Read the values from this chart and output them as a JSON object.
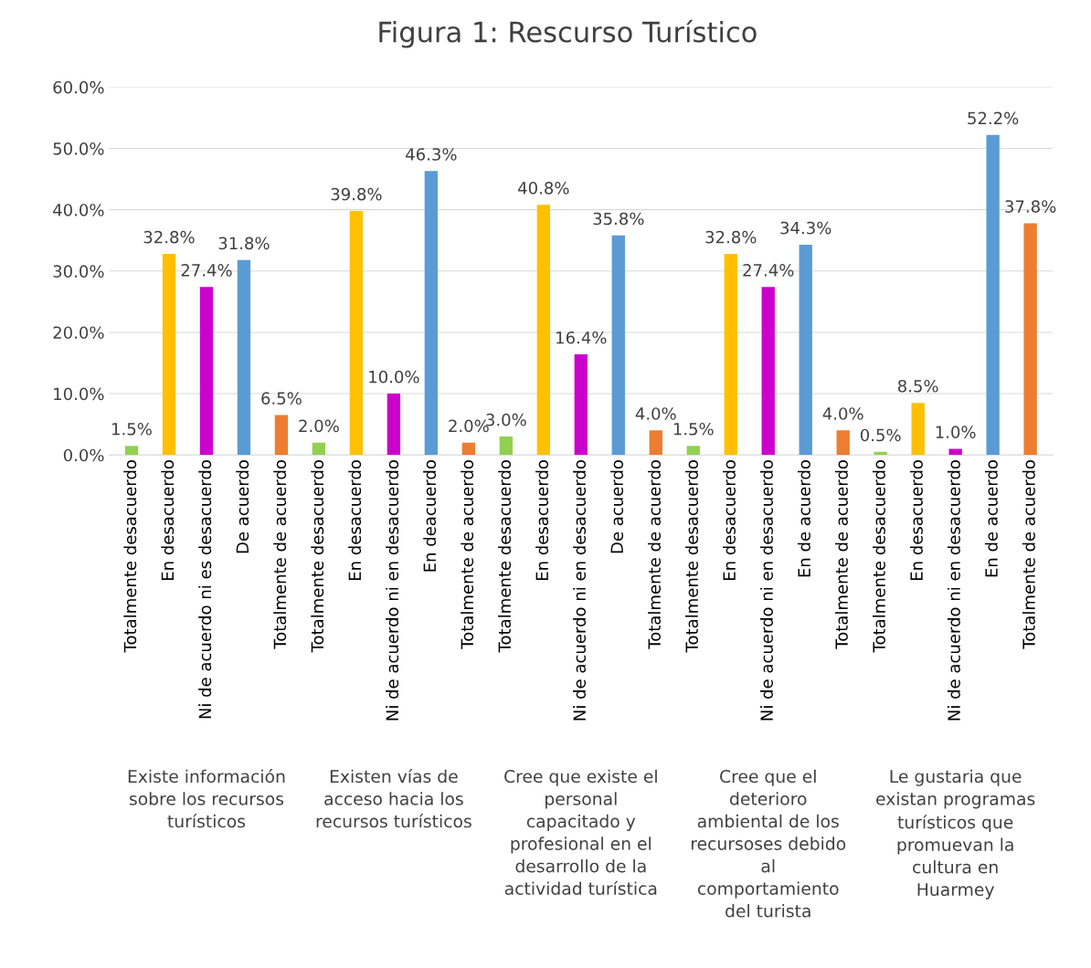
{
  "chart_data": {
    "type": "bar",
    "title": "Figura 1: Rescurso Turístico",
    "categories": [
      "Totalmente desacuerdo",
      "En desacuerdo",
      "Ni de acuerdo ni es desacuerdo",
      "De acuerdo",
      "Totalmente de acuerdo",
      "Totalmente desacuerdo",
      "En desacuerdo",
      "Ni de acuerdo ni en desacuerdo",
      "En deacuerdo",
      "Totalmente de acuerdo",
      "Totalmente desacuerdo",
      "En desacuerdo",
      "Ni de acuerdo ni en desacuerdo",
      "De acuerdo",
      "Totalmente de acuerdo",
      "Totalmente desacuerdo",
      "En desacuerdo",
      "Ni de acuerdo ni en desacuerdo",
      "En de acuerdo",
      "Totalmente de acuerdo",
      "Totalmente desacuerdo",
      "En desacuerdo",
      "Ni de acuerdo ni en desacuerdo",
      "En de acuerdo",
      "Totalmente de acuerdo"
    ],
    "values": [
      1.5,
      32.8,
      27.4,
      31.8,
      6.5,
      2.0,
      39.8,
      10.0,
      46.3,
      2.0,
      3.0,
      40.8,
      16.4,
      35.8,
      4.0,
      1.5,
      32.8,
      27.4,
      34.3,
      4.0,
      0.5,
      8.5,
      1.0,
      52.2,
      37.8
    ],
    "value_labels": [
      "1.5%",
      "32.8%",
      "27.4%",
      "31.8%",
      "6.5%",
      "2.0%",
      "39.8%",
      "10.0%",
      "46.3%",
      "2.0%",
      "3.0%",
      "40.8%",
      "16.4%",
      "35.8%",
      "4.0%",
      "1.5%",
      "32.8%",
      "27.4%",
      "34.3%",
      "4.0%",
      "0.5%",
      "8.5%",
      "1.0%",
      "52.2%",
      "37.8%"
    ],
    "colors": [
      "#92d050",
      "#ffc000",
      "#cc00cc",
      "#5b9bd5",
      "#ed7d31",
      "#92d050",
      "#ffc000",
      "#cc00cc",
      "#5b9bd5",
      "#ed7d31",
      "#92d050",
      "#ffc000",
      "#cc00cc",
      "#5b9bd5",
      "#ed7d31",
      "#92d050",
      "#ffc000",
      "#cc00cc",
      "#5b9bd5",
      "#ed7d31",
      "#92d050",
      "#ffc000",
      "#cc00cc",
      "#5b9bd5",
      "#ed7d31"
    ],
    "ylim": [
      0,
      60
    ],
    "yticks": [
      {
        "value": 0,
        "label": "0.0%"
      },
      {
        "value": 10,
        "label": "10.0%"
      },
      {
        "value": 20,
        "label": "20.0%"
      },
      {
        "value": 30,
        "label": "30.0%"
      },
      {
        "value": 40,
        "label": "40.0%"
      },
      {
        "value": 50,
        "label": "50.0%"
      },
      {
        "value": 60,
        "label": "60.0%"
      }
    ],
    "grid": "y",
    "legend": false,
    "annotations": [
      "Existe información\nsobre los recursos\nturísticos",
      "Existen vías de\nacceso hacia los\nrecursos turísticos",
      "Cree que existe el\npersonal\ncapacitado y\nprofesional en el\ndesarrollo de la\nactividad turística",
      "Cree que el\ndeterioro\nambiental de los\nrecursoses debido\nal\ncomportamiento\ndel turista",
      "Le gustaria que\nexistan programas\nturísticos que\npromuevan la\ncultura en\nHuarmey"
    ]
  }
}
